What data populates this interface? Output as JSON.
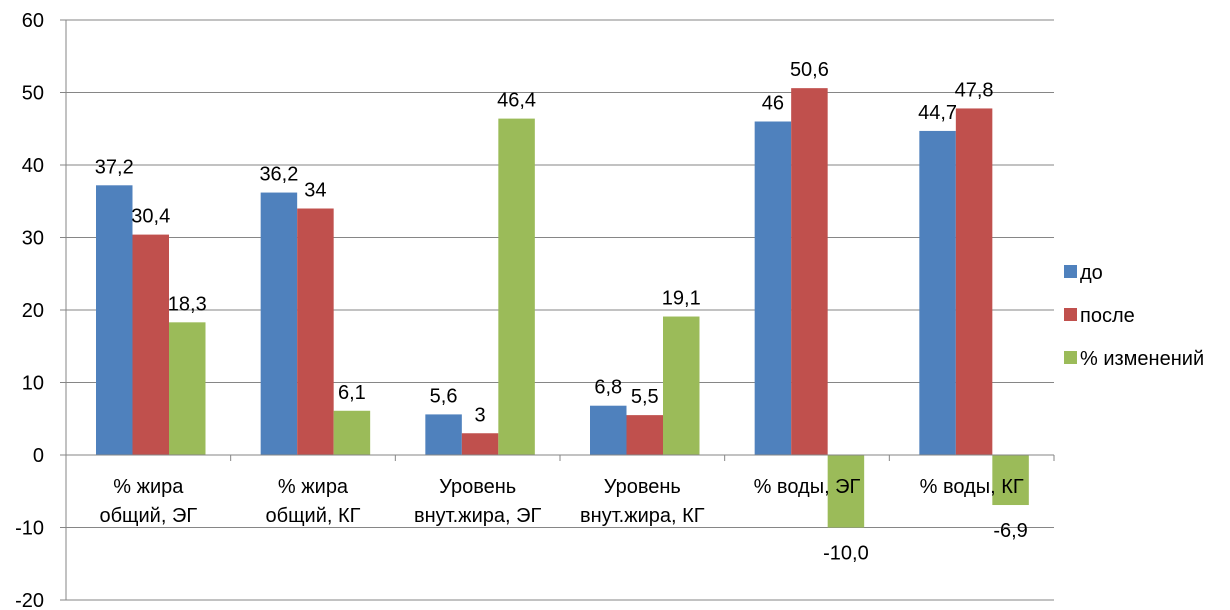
{
  "chart_data": {
    "type": "bar",
    "categories": [
      [
        "% жира",
        "общий, ЭГ"
      ],
      [
        "% жира",
        "общий, КГ"
      ],
      [
        "Уровень",
        "внут.жира, ЭГ"
      ],
      [
        "Уровень",
        "внут.жира, КГ"
      ],
      [
        "% воды, ЭГ"
      ],
      [
        "% воды, КГ"
      ]
    ],
    "series": [
      {
        "name": "до",
        "color": "#4F81BD",
        "values": [
          37.2,
          36.2,
          5.6,
          6.8,
          46,
          44.7
        ],
        "labels": [
          "37,2",
          "36,2",
          "5,6",
          "6,8",
          "46",
          "44,7"
        ]
      },
      {
        "name": "после",
        "color": "#C0504D",
        "values": [
          30.4,
          34,
          3,
          5.5,
          50.6,
          47.8
        ],
        "labels": [
          "30,4",
          "34",
          "3",
          "5,5",
          "50,6",
          "47,8"
        ]
      },
      {
        "name": "% изменений",
        "color": "#9BBB59",
        "values": [
          18.3,
          6.1,
          46.4,
          19.1,
          -10.0,
          -6.9
        ],
        "labels": [
          "18,3",
          "6,1",
          "46,4",
          "19,1",
          "-10,0",
          "-6,9"
        ]
      }
    ],
    "ylim": [
      -20,
      60
    ],
    "yticks": [
      -20,
      -10,
      0,
      10,
      20,
      30,
      40,
      50,
      60
    ],
    "grid": true,
    "legend_position": "right"
  }
}
